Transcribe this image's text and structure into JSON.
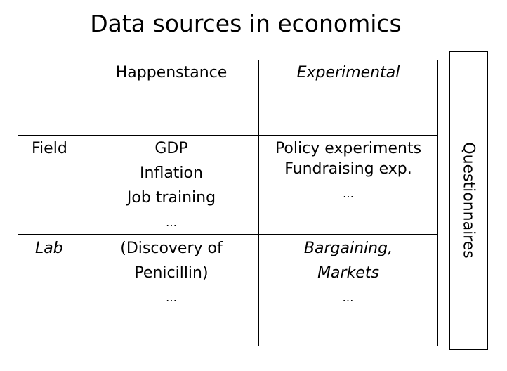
{
  "title": "Data sources in economics",
  "columns": [
    {
      "label": "Happenstance",
      "italic": false
    },
    {
      "label": "Experimental",
      "italic": true
    }
  ],
  "rows": [
    {
      "label": "Field",
      "italic": false
    },
    {
      "label": "Lab",
      "italic": true
    }
  ],
  "cells": {
    "field_happenstance": [
      "GDP",
      "Inflation",
      "Job training",
      "…"
    ],
    "field_experimental": [
      "Policy experiments",
      "Fundraising exp.",
      "…"
    ],
    "lab_happenstance": [
      "(Discovery of",
      "Penicillin)",
      "…"
    ],
    "lab_experimental": [
      "Bargaining,",
      "Markets",
      "…"
    ]
  },
  "side_label": "Questionnaires"
}
